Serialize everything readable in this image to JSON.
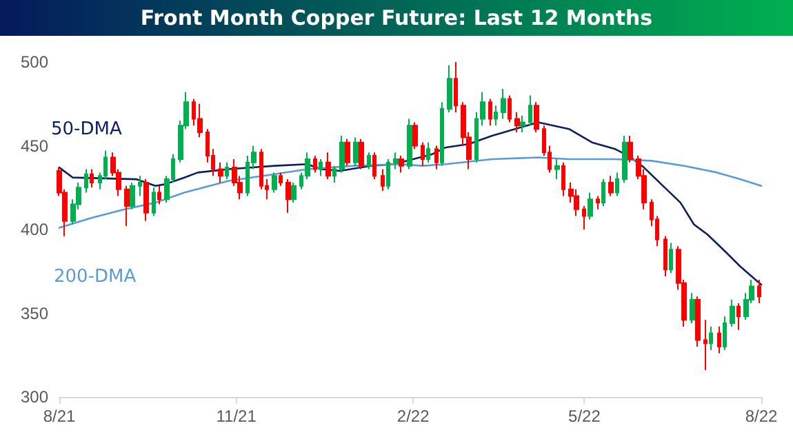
{
  "chart_data": {
    "type": "candlestick",
    "title": "Front Month Copper Future: Last 12 Months",
    "x": [
      "2021-08-02",
      "2021-08-05",
      "2021-08-09",
      "2021-08-12",
      "2021-08-16",
      "2021-08-19",
      "2021-08-23",
      "2021-08-26",
      "2021-08-30",
      "2021-09-02",
      "2021-09-06",
      "2021-09-09",
      "2021-09-13",
      "2021-09-16",
      "2021-09-20",
      "2021-09-23",
      "2021-09-27",
      "2021-09-30",
      "2021-10-04",
      "2021-10-07",
      "2021-10-11",
      "2021-10-14",
      "2021-10-18",
      "2021-10-21",
      "2021-10-25",
      "2021-10-28",
      "2021-11-01",
      "2021-11-04",
      "2021-11-08",
      "2021-11-11",
      "2021-11-15",
      "2021-11-18",
      "2021-11-22",
      "2021-11-25",
      "2021-11-29",
      "2021-12-02",
      "2021-12-06",
      "2021-12-09",
      "2021-12-13",
      "2021-12-16",
      "2021-12-20",
      "2021-12-23",
      "2021-12-27",
      "2021-12-30",
      "2022-01-03",
      "2022-01-06",
      "2022-01-10",
      "2022-01-13",
      "2022-01-17",
      "2022-01-20",
      "2022-01-24",
      "2022-01-27",
      "2022-01-31",
      "2022-02-03",
      "2022-02-07",
      "2022-02-10",
      "2022-02-14",
      "2022-02-17",
      "2022-02-21",
      "2022-02-24",
      "2022-02-28",
      "2022-03-03",
      "2022-03-07",
      "2022-03-10",
      "2022-03-14",
      "2022-03-17",
      "2022-03-21",
      "2022-03-24",
      "2022-03-28",
      "2022-03-31",
      "2022-04-04",
      "2022-04-07",
      "2022-04-11",
      "2022-04-14",
      "2022-04-18",
      "2022-04-21",
      "2022-04-25",
      "2022-04-28",
      "2022-05-02",
      "2022-05-05",
      "2022-05-09",
      "2022-05-12",
      "2022-05-16",
      "2022-05-19",
      "2022-05-23",
      "2022-05-26",
      "2022-05-30",
      "2022-06-02",
      "2022-06-06",
      "2022-06-09",
      "2022-06-13",
      "2022-06-16",
      "2022-06-20",
      "2022-06-23",
      "2022-06-27",
      "2022-06-30",
      "2022-07-04",
      "2022-07-07",
      "2022-07-11",
      "2022-07-14",
      "2022-07-18",
      "2022-07-21",
      "2022-07-25",
      "2022-07-28",
      "2022-08-01"
    ],
    "ohlc": [
      [
        435,
        437,
        420,
        422
      ],
      [
        422,
        424,
        396,
        405
      ],
      [
        405,
        418,
        403,
        415
      ],
      [
        415,
        428,
        412,
        425
      ],
      [
        425,
        436,
        422,
        433
      ],
      [
        433,
        436,
        425,
        428
      ],
      [
        428,
        434,
        424,
        432
      ],
      [
        432,
        447,
        430,
        443
      ],
      [
        443,
        446,
        432,
        434
      ],
      [
        434,
        436,
        420,
        424
      ],
      [
        424,
        426,
        402,
        414
      ],
      [
        414,
        428,
        412,
        426
      ],
      [
        426,
        432,
        420,
        428
      ],
      [
        428,
        430,
        405,
        410
      ],
      [
        410,
        425,
        408,
        422
      ],
      [
        422,
        426,
        415,
        418
      ],
      [
        418,
        432,
        416,
        430
      ],
      [
        430,
        445,
        428,
        442
      ],
      [
        442,
        465,
        440,
        462
      ],
      [
        462,
        482,
        460,
        476
      ],
      [
        476,
        478,
        462,
        466
      ],
      [
        466,
        475,
        455,
        458
      ],
      [
        458,
        460,
        440,
        444
      ],
      [
        444,
        448,
        432,
        436
      ],
      [
        436,
        440,
        428,
        432
      ],
      [
        432,
        440,
        430,
        437
      ],
      [
        437,
        442,
        426,
        428
      ],
      [
        428,
        432,
        418,
        422
      ],
      [
        422,
        444,
        420,
        440
      ],
      [
        440,
        450,
        436,
        446
      ],
      [
        446,
        448,
        424,
        426
      ],
      [
        426,
        430,
        418,
        424
      ],
      [
        424,
        434,
        422,
        432
      ],
      [
        432,
        434,
        426,
        428
      ],
      [
        428,
        430,
        410,
        418
      ],
      [
        418,
        428,
        416,
        426
      ],
      [
        426,
        434,
        424,
        432
      ],
      [
        432,
        446,
        430,
        442
      ],
      [
        442,
        444,
        434,
        436
      ],
      [
        436,
        442,
        432,
        440
      ],
      [
        440,
        446,
        430,
        432
      ],
      [
        432,
        438,
        428,
        436
      ],
      [
        436,
        456,
        434,
        452
      ],
      [
        452,
        454,
        438,
        440
      ],
      [
        440,
        455,
        438,
        452
      ],
      [
        452,
        454,
        436,
        438
      ],
      [
        438,
        446,
        436,
        444
      ],
      [
        444,
        446,
        430,
        432
      ],
      [
        432,
        436,
        423,
        426
      ],
      [
        426,
        442,
        424,
        440
      ],
      [
        440,
        446,
        436,
        442
      ],
      [
        442,
        444,
        434,
        438
      ],
      [
        438,
        466,
        436,
        462
      ],
      [
        462,
        464,
        448,
        450
      ],
      [
        450,
        452,
        438,
        442
      ],
      [
        442,
        452,
        440,
        448
      ],
      [
        448,
        450,
        436,
        440
      ],
      [
        440,
        476,
        438,
        472
      ],
      [
        472,
        498,
        470,
        490
      ],
      [
        490,
        500,
        470,
        474
      ],
      [
        474,
        476,
        450,
        455
      ],
      [
        455,
        458,
        436,
        442
      ],
      [
        442,
        470,
        440,
        466
      ],
      [
        466,
        482,
        462,
        476
      ],
      [
        476,
        478,
        462,
        466
      ],
      [
        466,
        474,
        462,
        470
      ],
      [
        470,
        484,
        466,
        478
      ],
      [
        478,
        480,
        464,
        466
      ],
      [
        466,
        470,
        458,
        462
      ],
      [
        462,
        468,
        458,
        464
      ],
      [
        464,
        480,
        462,
        474
      ],
      [
        474,
        476,
        458,
        460
      ],
      [
        460,
        462,
        444,
        446
      ],
      [
        446,
        450,
        434,
        436
      ],
      [
        436,
        442,
        430,
        438
      ],
      [
        438,
        440,
        420,
        424
      ],
      [
        424,
        428,
        416,
        420
      ],
      [
        420,
        424,
        408,
        412
      ],
      [
        412,
        414,
        400,
        408
      ],
      [
        408,
        422,
        406,
        418
      ],
      [
        418,
        420,
        412,
        416
      ],
      [
        416,
        430,
        414,
        428
      ],
      [
        428,
        432,
        420,
        422
      ],
      [
        422,
        434,
        420,
        430
      ],
      [
        430,
        456,
        428,
        452
      ],
      [
        452,
        456,
        440,
        442
      ],
      [
        442,
        444,
        430,
        432
      ],
      [
        432,
        436,
        412,
        416
      ],
      [
        416,
        418,
        402,
        406
      ],
      [
        406,
        408,
        390,
        394
      ],
      [
        394,
        396,
        372,
        376
      ],
      [
        376,
        392,
        374,
        388
      ],
      [
        388,
        390,
        364,
        368
      ],
      [
        368,
        370,
        342,
        346
      ],
      [
        346,
        362,
        344,
        358
      ],
      [
        358,
        360,
        330,
        334
      ],
      [
        334,
        346,
        316,
        332
      ],
      [
        332,
        342,
        328,
        338
      ],
      [
        338,
        342,
        326,
        330
      ],
      [
        330,
        348,
        328,
        344
      ],
      [
        344,
        358,
        342,
        354
      ],
      [
        354,
        356,
        340,
        348
      ],
      [
        348,
        362,
        346,
        358
      ],
      [
        358,
        370,
        356,
        366
      ],
      [
        366,
        370,
        356,
        360
      ]
    ],
    "colors": [
      "#ff0000",
      "#ff0000",
      "#00b050",
      "#00b050",
      "#00b050",
      "#ff0000",
      "#00b050",
      "#00b050",
      "#ff0000",
      "#ff0000",
      "#ff0000",
      "#00b050",
      "#00b050",
      "#ff0000",
      "#00b050",
      "#ff0000",
      "#00b050",
      "#00b050",
      "#00b050",
      "#00b050",
      "#ff0000",
      "#ff0000",
      "#ff0000",
      "#ff0000",
      "#ff0000",
      "#00b050",
      "#ff0000",
      "#ff0000",
      "#00b050",
      "#00b050",
      "#ff0000",
      "#ff0000",
      "#00b050",
      "#ff0000",
      "#ff0000",
      "#00b050",
      "#00b050",
      "#00b050",
      "#ff0000",
      "#00b050",
      "#ff0000",
      "#00b050",
      "#00b050",
      "#ff0000",
      "#00b050",
      "#ff0000",
      "#00b050",
      "#ff0000",
      "#ff0000",
      "#00b050",
      "#00b050",
      "#ff0000",
      "#00b050",
      "#ff0000",
      "#ff0000",
      "#00b050",
      "#ff0000",
      "#00b050",
      "#00b050",
      "#ff0000",
      "#ff0000",
      "#ff0000",
      "#00b050",
      "#00b050",
      "#ff0000",
      "#00b050",
      "#00b050",
      "#ff0000",
      "#ff0000",
      "#00b050",
      "#00b050",
      "#ff0000",
      "#ff0000",
      "#ff0000",
      "#00b050",
      "#ff0000",
      "#ff0000",
      "#ff0000",
      "#ff0000",
      "#00b050",
      "#ff0000",
      "#00b050",
      "#ff0000",
      "#00b050",
      "#00b050",
      "#ff0000",
      "#ff0000",
      "#ff0000",
      "#ff0000",
      "#ff0000",
      "#ff0000",
      "#00b050",
      "#ff0000",
      "#ff0000",
      "#00b050",
      "#ff0000",
      "#ff0000",
      "#00b050",
      "#ff0000",
      "#00b050",
      "#00b050",
      "#ff0000",
      "#00b050",
      "#00b050",
      "#ff0000"
    ],
    "series": [
      {
        "name": "50-DMA",
        "type": "line",
        "color": "#0c1f5e",
        "x": [
          "2021-08-02",
          "2021-08-09",
          "2021-09-11",
          "2021-09-21",
          "2021-09-26",
          "2021-10-06",
          "2021-10-13",
          "2021-10-29",
          "2021-11-22",
          "2021-12-09",
          "2021-12-16",
          "2021-12-26",
          "2022-01-11",
          "2022-01-23",
          "2022-02-12",
          "2022-02-19",
          "2022-03-03",
          "2022-03-15",
          "2022-03-27",
          "2022-04-08",
          "2022-04-24",
          "2022-05-06",
          "2022-05-18",
          "2022-05-25",
          "2022-06-02",
          "2022-06-11",
          "2022-06-21",
          "2022-06-28",
          "2022-07-05",
          "2022-07-15",
          "2022-07-22",
          "2022-07-29",
          "2022-08-02"
        ],
        "values": [
          437,
          431,
          430,
          426,
          427,
          431,
          434,
          436,
          438,
          439,
          436,
          435,
          438,
          439,
          445,
          449,
          451,
          456,
          460,
          464,
          460,
          452,
          448,
          444,
          437,
          427,
          416,
          403,
          397,
          386,
          378,
          371,
          367
        ]
      },
      {
        "name": "200-DMA",
        "type": "line",
        "color": "#5b9bd5",
        "x": [
          "2021-08-02",
          "2021-08-19",
          "2021-09-05",
          "2021-09-21",
          "2021-10-06",
          "2021-10-29",
          "2021-11-22",
          "2021-12-09",
          "2022-01-02",
          "2022-01-26",
          "2022-02-07",
          "2022-02-19",
          "2022-03-15",
          "2022-04-08",
          "2022-04-24",
          "2022-05-18",
          "2022-06-06",
          "2022-06-23",
          "2022-07-10",
          "2022-07-22",
          "2022-08-02"
        ],
        "values": [
          401,
          407,
          412,
          416,
          422,
          429,
          433,
          436,
          438,
          439,
          438,
          439,
          442,
          443,
          442,
          442,
          441,
          438,
          434,
          430,
          426
        ]
      }
    ],
    "xlim": [
      "2021-08-02",
      "2022-08-02"
    ],
    "xticks": [
      {
        "value": "2021-08-02",
        "label": "8/21"
      },
      {
        "value": "2021-11-02",
        "label": "11/21"
      },
      {
        "value": "2022-02-02",
        "label": "2/22"
      },
      {
        "value": "2022-05-02",
        "label": "5/22"
      },
      {
        "value": "2022-08-02",
        "label": "8/22"
      }
    ],
    "ylim": [
      300,
      500
    ],
    "yticks": [
      300,
      350,
      400,
      450,
      500
    ],
    "grid": false,
    "legend": false,
    "marker": "none",
    "line_style": "solid"
  }
}
